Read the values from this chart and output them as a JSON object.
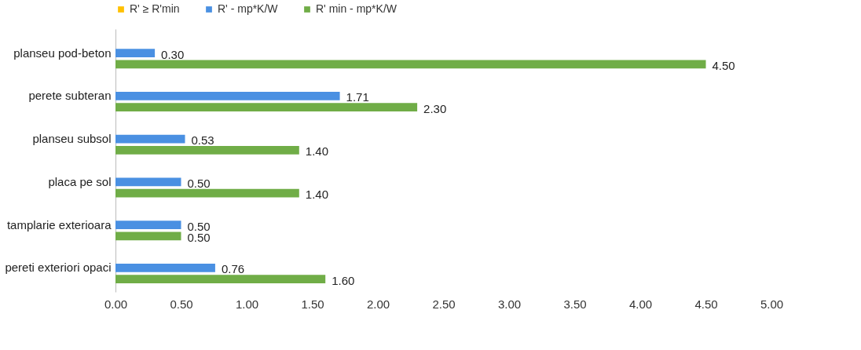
{
  "chart_data": {
    "type": "bar",
    "orientation": "horizontal",
    "categories": [
      "planseu pod-beton",
      "perete subteran",
      "planseu subsol",
      "placa pe sol",
      "tamplarie exterioara",
      "pereti exteriori opaci"
    ],
    "series": [
      {
        "name": "R' ≥ R'min",
        "color": "#ffc000",
        "values": [
          null,
          null,
          null,
          null,
          null,
          null
        ]
      },
      {
        "name": "R' - mp*K/W",
        "color": "#4a90e2",
        "values": [
          0.3,
          1.71,
          0.53,
          0.5,
          0.5,
          0.76
        ],
        "value_labels": [
          "0.30",
          "1.71",
          "0.53",
          "0.50",
          "0.50",
          "0.76"
        ]
      },
      {
        "name": "R' min - mp*K/W",
        "color": "#70ad47",
        "values": [
          4.5,
          2.3,
          1.4,
          1.4,
          0.5,
          1.6
        ],
        "value_labels": [
          "4.50",
          "2.30",
          "1.40",
          "1.40",
          "0.50",
          "1.60"
        ]
      }
    ],
    "xlim": [
      0,
      5
    ],
    "xticks": [
      {
        "value": 0,
        "label": "0.00"
      },
      {
        "value": 0.5,
        "label": "0.50"
      },
      {
        "value": 1,
        "label": "1.00"
      },
      {
        "value": 1.5,
        "label": "1.50"
      },
      {
        "value": 2,
        "label": "2.00"
      },
      {
        "value": 2.5,
        "label": "2.50"
      },
      {
        "value": 3,
        "label": "3.00"
      },
      {
        "value": 3.5,
        "label": "3.50"
      },
      {
        "value": 4,
        "label": "4.00"
      },
      {
        "value": 4.5,
        "label": "4.50"
      },
      {
        "value": 5,
        "label": "5.00"
      }
    ],
    "legend": "top",
    "grid": false
  }
}
